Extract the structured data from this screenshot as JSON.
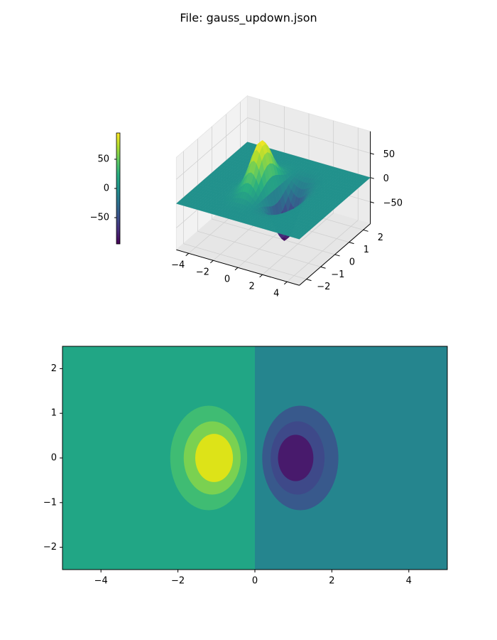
{
  "title": "File: gauss_updown.json",
  "chart_data": [
    {
      "type": "surface",
      "colormap": "viridis",
      "xlim": [
        -5,
        5
      ],
      "ylim": [
        -2.5,
        2.5
      ],
      "zlim": [
        -95,
        95
      ],
      "xticks": [
        {
          "value": -4,
          "label": "−4"
        },
        {
          "value": -2,
          "label": "−2"
        },
        0,
        2,
        4
      ],
      "yticks": [
        {
          "value": -2,
          "label": "−2"
        },
        {
          "value": -1,
          "label": "−1"
        },
        0,
        1,
        2
      ],
      "zticks": [
        {
          "value": -50,
          "label": "−50"
        },
        0,
        50
      ],
      "peaks": [
        {
          "x": -1,
          "y": 0,
          "amplitude": 95,
          "sigma": 0.6
        },
        {
          "x": 1,
          "y": 0,
          "amplitude": -95,
          "sigma": 0.6
        }
      ],
      "colorbar": {
        "lim": [
          -95,
          95
        ],
        "ticks": [
          {
            "value": -50,
            "label": "−50"
          },
          0,
          50
        ]
      }
    },
    {
      "type": "contourf",
      "xlim": [
        -5,
        5
      ],
      "ylim": [
        -2.5,
        2.5
      ],
      "xticks": [
        {
          "value": -4,
          "label": "−4"
        },
        {
          "value": -2,
          "label": "−2"
        },
        0,
        2,
        4
      ],
      "yticks": [
        {
          "value": -2,
          "label": "−2"
        },
        {
          "value": -1,
          "label": "−1"
        },
        0,
        1,
        2
      ],
      "regions": [
        {
          "x0": -5,
          "x1": 0,
          "color": "#21a685"
        },
        {
          "x0": 0,
          "x1": 5,
          "color": "#25858e"
        }
      ],
      "ellipses": [
        {
          "x": -1.2,
          "y": 0,
          "rx": 1.0,
          "ry": 1.17,
          "color": "#3fbc73"
        },
        {
          "x": -1.11,
          "y": 0,
          "rx": 0.74,
          "ry": 0.82,
          "color": "#7ad151"
        },
        {
          "x": -1.06,
          "y": 0,
          "rx": 0.49,
          "ry": 0.54,
          "color": "#dde318"
        },
        {
          "x": 1.18,
          "y": 0,
          "rx": 0.99,
          "ry": 1.17,
          "color": "#38598c"
        },
        {
          "x": 1.11,
          "y": 0,
          "rx": 0.7,
          "ry": 0.82,
          "color": "#3e4989"
        },
        {
          "x": 1.06,
          "y": 0,
          "rx": 0.46,
          "ry": 0.52,
          "color": "#481a6c"
        }
      ]
    }
  ]
}
